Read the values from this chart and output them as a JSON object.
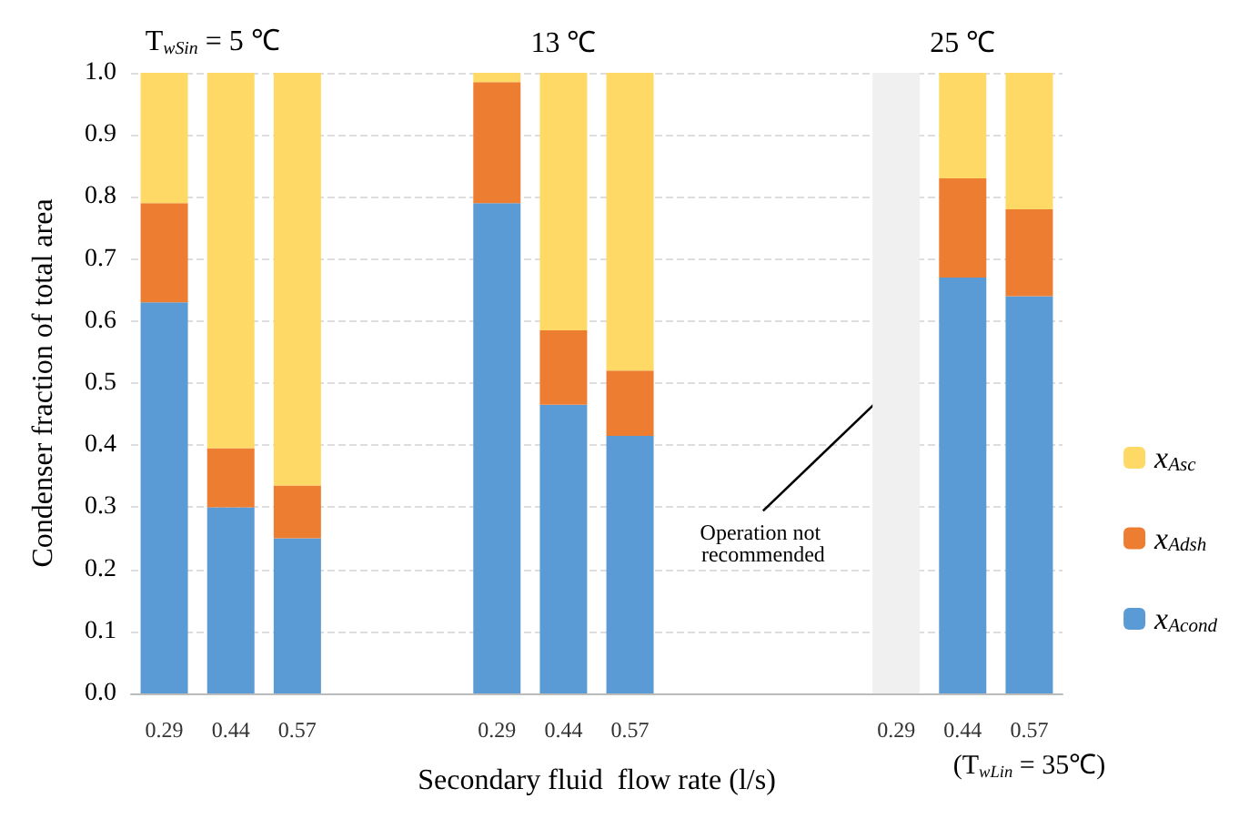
{
  "chart_data": {
    "type": "bar",
    "stacked": true,
    "ylabel": "Condenser fraction of total area",
    "xlabel": "Secondary fluid  flow rate (l/s)",
    "categories": [
      "0.29",
      "0.44",
      "0.57",
      null,
      null,
      "0.29",
      "0.44",
      "0.57",
      null,
      null,
      null,
      "0.29",
      "0.44",
      "0.57"
    ],
    "series": [
      {
        "name": "x$_{Acond}$",
        "color": "#5b9bd5",
        "values": [
          0.63,
          0.3,
          0.25,
          null,
          null,
          0.79,
          0.465,
          0.415,
          null,
          null,
          null,
          null,
          0.67,
          0.64
        ]
      },
      {
        "name": "x$_{Adsh}$",
        "color": "#ed7d31",
        "values": [
          0.16,
          0.095,
          0.085,
          null,
          null,
          0.195,
          0.12,
          0.105,
          null,
          null,
          null,
          null,
          0.16,
          0.14
        ]
      },
      {
        "name": "x$_{Asc}$",
        "color": "#ffd966",
        "values": [
          0.21,
          0.605,
          0.665,
          null,
          null,
          0.015,
          0.415,
          0.48,
          null,
          null,
          null,
          null,
          0.17,
          0.22
        ]
      },
      {
        "color": "#f0f0f0",
        "values": [
          null,
          null,
          null,
          null,
          null,
          null,
          null,
          null,
          null,
          null,
          null,
          1.0,
          null,
          null
        ]
      }
    ],
    "ylim": [
      0,
      1
    ],
    "yticks": [
      {
        "value": 0,
        "label": "0.0"
      },
      0.1,
      0.2,
      0.3,
      0.4,
      0.5,
      0.6,
      0.7,
      0.8,
      0.9,
      {
        "value": 1,
        "label": "1.0"
      }
    ],
    "grid": "y",
    "legend": "right",
    "annotations": [
      "T$_{wSin}$ = 5 ℃",
      "13 ℃",
      "25 ℃",
      "Operation not recommended",
      "(T$_{wLin}$ = 35℃)"
    ]
  }
}
